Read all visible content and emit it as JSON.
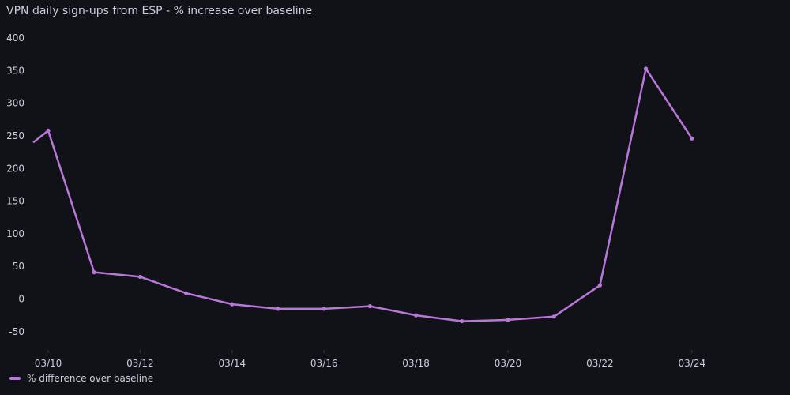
{
  "title": "VPN daily sign-ups from ESP - % increase over baseline",
  "legend": {
    "label": "% difference over baseline"
  },
  "colors": {
    "background": "#111217",
    "series": "#b877d9",
    "text": "#ccccdc",
    "axis": "#3a3b40"
  },
  "chart_data": {
    "type": "line",
    "title": "VPN daily sign-ups from ESP - % increase over baseline",
    "xlabel": "",
    "ylabel": "",
    "ylim": [
      -75,
      400
    ],
    "yticks": [
      -50,
      0,
      50,
      100,
      150,
      200,
      250,
      300,
      350,
      400
    ],
    "x": [
      "03/10",
      "03/11",
      "03/12",
      "03/13",
      "03/14",
      "03/15",
      "03/16",
      "03/17",
      "03/18",
      "03/19",
      "03/20",
      "03/21",
      "03/22",
      "03/23",
      "03/24"
    ],
    "xtick_labels": [
      "03/10",
      "03/12",
      "03/14",
      "03/16",
      "03/18",
      "03/20",
      "03/22",
      "03/24"
    ],
    "series": [
      {
        "name": "% difference over baseline",
        "values": [
          258,
          41,
          34,
          9,
          -8,
          -15,
          -15,
          -11,
          -25,
          -34,
          -32,
          -27,
          21,
          353,
          246
        ]
      }
    ],
    "grid": false,
    "legend_position": "bottom-left"
  }
}
